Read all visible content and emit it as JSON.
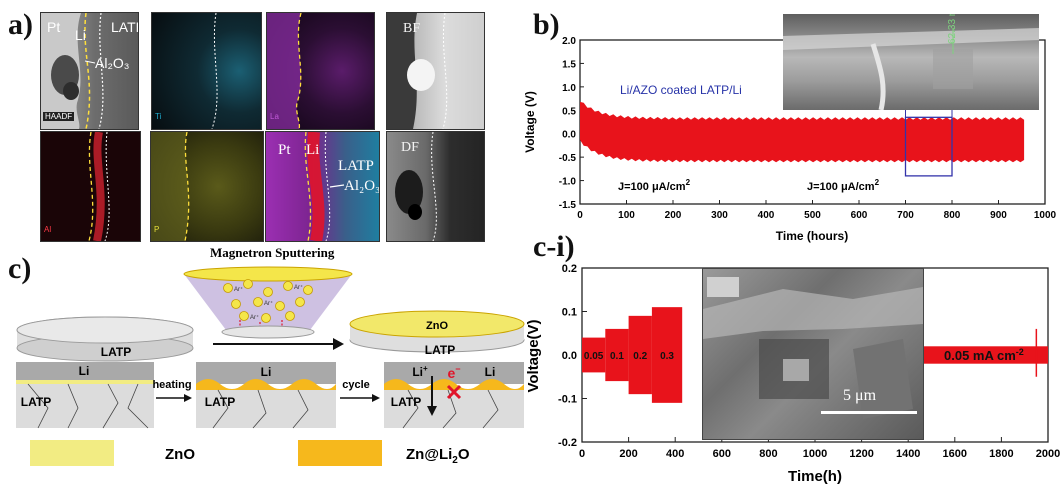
{
  "panel_a": {
    "letter": "a)",
    "t1": {
      "pt": "Pt",
      "li": "Li",
      "latp": "LATP",
      "al2o3": "Al₂O₃",
      "haadf": "HAADF"
    },
    "t2": {
      "tag": "Ti"
    },
    "t3": {
      "tag": "La"
    },
    "t4": {
      "tag": "Al"
    },
    "t5": {
      "tag": "P"
    },
    "t6": {
      "pt": "Pt",
      "li": "Li",
      "latp": "LATP",
      "al2o3": "Al₂O₃"
    },
    "bf": "BF",
    "df": "DF",
    "colors": {
      "ti": "#1fa7c9",
      "la": "#a23ab5",
      "al": "#c51b2a",
      "p": "#c9c327"
    }
  },
  "panel_b": {
    "letter": "b)",
    "legend": "Li/AZO coated LATP/Li",
    "j_left": "J=100 μA/cm",
    "j_right": "J=100 μA/cm",
    "j_sup": "2",
    "inset_label": "62.33 nm",
    "accent": "#e8131b",
    "chart_data": {
      "type": "line",
      "xlabel": "Time (hours)",
      "ylabel": "Voltage (V)",
      "xlim": [
        0,
        1000
      ],
      "ylim": [
        -1.5,
        2.0
      ],
      "xticks": [
        "0",
        "100",
        "200",
        "300",
        "400",
        "500",
        "600",
        "700",
        "800",
        "900",
        "1000"
      ],
      "yticks": [
        "2.0",
        "1.5",
        "1.0",
        "0.5",
        "0.0",
        "-0.5",
        "-1.0",
        "-1.5"
      ],
      "series": [
        {
          "name": "Li/AZO coated LATP/Li",
          "x_range": [
            0,
            955
          ],
          "upper_start": 0.7,
          "upper_steady": 0.32,
          "lower_start": -0.15,
          "lower_steady": -0.58
        }
      ],
      "highlight_box": {
        "x": [
          700,
          800
        ],
        "y": [
          -0.9,
          0.35
        ]
      }
    }
  },
  "panel_c": {
    "letter": "c)",
    "title": "Magnetron Sputtering",
    "latp1": "LATP",
    "zno_top": "ZnO",
    "latp2": "LATP",
    "li1": "Li",
    "latp3": "LATP",
    "heating": "heating",
    "li2": "Li",
    "latp4": "LATP",
    "cycle": "cycle",
    "li_plus": "Li",
    "e_minus": "e",
    "li3": "Li",
    "latp5": "LATP",
    "legend_zno": "ZnO",
    "legend_zn": "Zn@Li",
    "legend_zn_sub": "2",
    "legend_zn_tail": "O",
    "colors": {
      "zno": "#f2ec83",
      "zn_li2o": "#f6b81c",
      "latp": "#dcdcdc",
      "li": "#a9a9a9"
    }
  },
  "panel_ci": {
    "letter": "c-i)",
    "current_labels": [
      "0.05",
      "0.1",
      "0.2",
      "0.3"
    ],
    "right_label": "0.05 mA cm",
    "right_label_sup": "-2",
    "inset_scale": "5 μm",
    "chart_data": {
      "type": "line",
      "xlabel": "Time(h)",
      "ylabel": "Voltage(V)",
      "xlim": [
        0,
        2000
      ],
      "ylim": [
        -0.2,
        0.2
      ],
      "xticks": [
        "0",
        "200",
        "400",
        "600",
        "800",
        "1000",
        "1200",
        "1400",
        "1600",
        "1800",
        "2000"
      ],
      "yticks": [
        "0.2",
        "0.1",
        "0.0",
        "-0.1",
        "-0.2"
      ],
      "segments": [
        {
          "current": 0.05,
          "x": [
            0,
            100
          ],
          "amplitude": 0.04
        },
        {
          "current": 0.1,
          "x": [
            100,
            200
          ],
          "amplitude": 0.06
        },
        {
          "current": 0.2,
          "x": [
            200,
            300
          ],
          "amplitude": 0.09
        },
        {
          "current": 0.3,
          "x": [
            300,
            430
          ],
          "amplitude": 0.11
        },
        {
          "current": 0.05,
          "x": [
            1450,
            2000
          ],
          "amplitude": 0.02
        }
      ]
    }
  }
}
